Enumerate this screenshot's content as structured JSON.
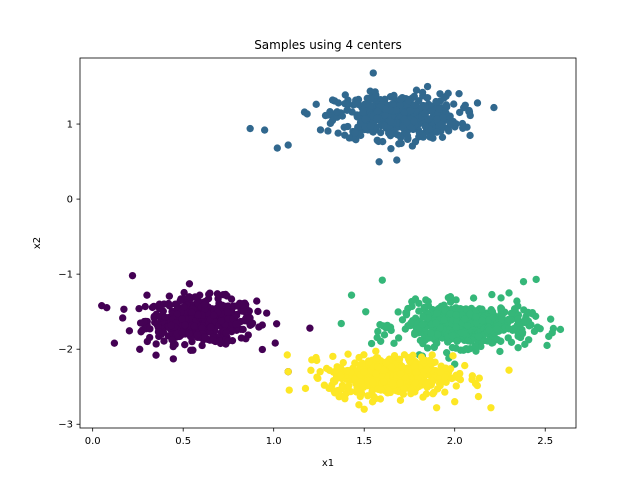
{
  "chart_data": {
    "type": "scatter",
    "title": "Samples using 4 centers",
    "xlabel": "x1",
    "ylabel": "x2",
    "xlim": [
      -0.07,
      2.67
    ],
    "ylim": [
      -3.05,
      1.88
    ],
    "xticks": [
      0.0,
      0.5,
      1.0,
      1.5,
      2.0,
      2.5
    ],
    "xtick_labels": [
      "0.0",
      "0.5",
      "1.0",
      "1.5",
      "2.0",
      "2.5"
    ],
    "yticks": [
      -3,
      -2,
      -1,
      0,
      1
    ],
    "ytick_labels": [
      "−3",
      "−2",
      "−1",
      "0",
      "1"
    ],
    "grid": false,
    "legend": "none",
    "marker_size": 36,
    "samples_per_cluster": 500,
    "clusters": [
      {
        "center": [
          0.6,
          -1.62
        ],
        "spread": [
          0.15,
          0.15
        ],
        "color": "#440154",
        "outliers": [
          [
            0.05,
            -1.42
          ],
          [
            0.22,
            -1.02
          ],
          [
            0.12,
            -1.92
          ],
          [
            1.08,
            -2.3
          ],
          [
            0.35,
            -2.08
          ],
          [
            0.3,
            -1.28
          ],
          [
            1.2,
            -1.72
          ]
        ]
      },
      {
        "center": [
          1.68,
          1.1
        ],
        "spread": [
          0.17,
          0.15
        ],
        "color": "#31688e",
        "outliers": [
          [
            0.87,
            0.94
          ],
          [
            0.95,
            0.92
          ],
          [
            1.02,
            0.68
          ],
          [
            1.08,
            0.72
          ],
          [
            1.55,
            1.68
          ],
          [
            1.85,
            1.5
          ],
          [
            2.08,
            1.18
          ],
          [
            1.68,
            0.52
          ]
        ]
      },
      {
        "center": [
          2.05,
          -1.68
        ],
        "spread": [
          0.18,
          0.14
        ],
        "color": "#35b779",
        "outliers": [
          [
            2.45,
            -1.07
          ],
          [
            2.53,
            -1.6
          ],
          [
            2.51,
            -1.95
          ],
          [
            2.38,
            -1.1
          ],
          [
            1.43,
            -1.28
          ],
          [
            1.6,
            -1.08
          ],
          [
            2.3,
            -1.25
          ],
          [
            2.0,
            -2.2
          ]
        ]
      },
      {
        "center": [
          1.65,
          -2.35
        ],
        "spread": [
          0.17,
          0.13
        ],
        "color": "#fde725",
        "outliers": [
          [
            1.08,
            -2.3
          ],
          [
            1.28,
            -2.48
          ],
          [
            2.3,
            -2.28
          ],
          [
            2.2,
            -2.78
          ],
          [
            1.9,
            -2.78
          ],
          [
            1.5,
            -2.8
          ],
          [
            2.0,
            -2.7
          ]
        ]
      }
    ]
  }
}
